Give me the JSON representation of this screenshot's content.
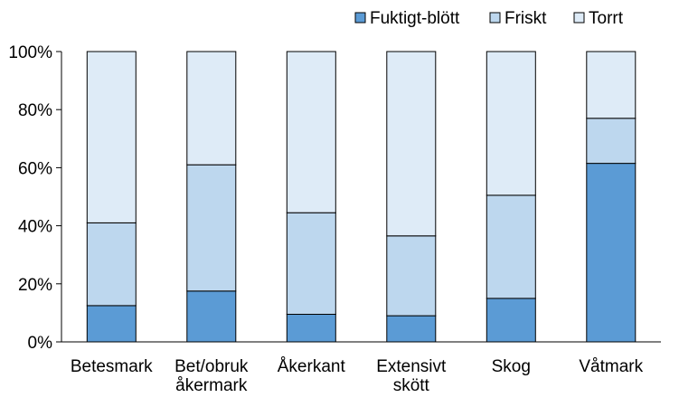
{
  "chart_data": {
    "type": "bar",
    "stacked": true,
    "categories": [
      [
        "Betesmark"
      ],
      [
        "Bet/obruk",
        "åkermark"
      ],
      [
        "Åkerkant"
      ],
      [
        "Extensivt",
        "skött"
      ],
      [
        "Skog"
      ],
      [
        "Våtmark"
      ]
    ],
    "series": [
      {
        "name": "Fuktigt-blött",
        "color": "#5b9bd5",
        "values": [
          12.5,
          17.5,
          9.5,
          9.0,
          15.0,
          61.5
        ]
      },
      {
        "name": "Friskt",
        "color": "#bdd7ee",
        "values": [
          28.5,
          43.5,
          35.0,
          27.5,
          35.5,
          15.5
        ]
      },
      {
        "name": "Torrt",
        "color": "#deebf7",
        "values": [
          59.0,
          39.0,
          55.5,
          63.5,
          49.5,
          23.0
        ]
      }
    ],
    "ylim": [
      0,
      100
    ],
    "yticks": [
      "0%",
      "20%",
      "40%",
      "60%",
      "80%",
      "100%"
    ],
    "grid": false,
    "legend_position": "top-right"
  }
}
